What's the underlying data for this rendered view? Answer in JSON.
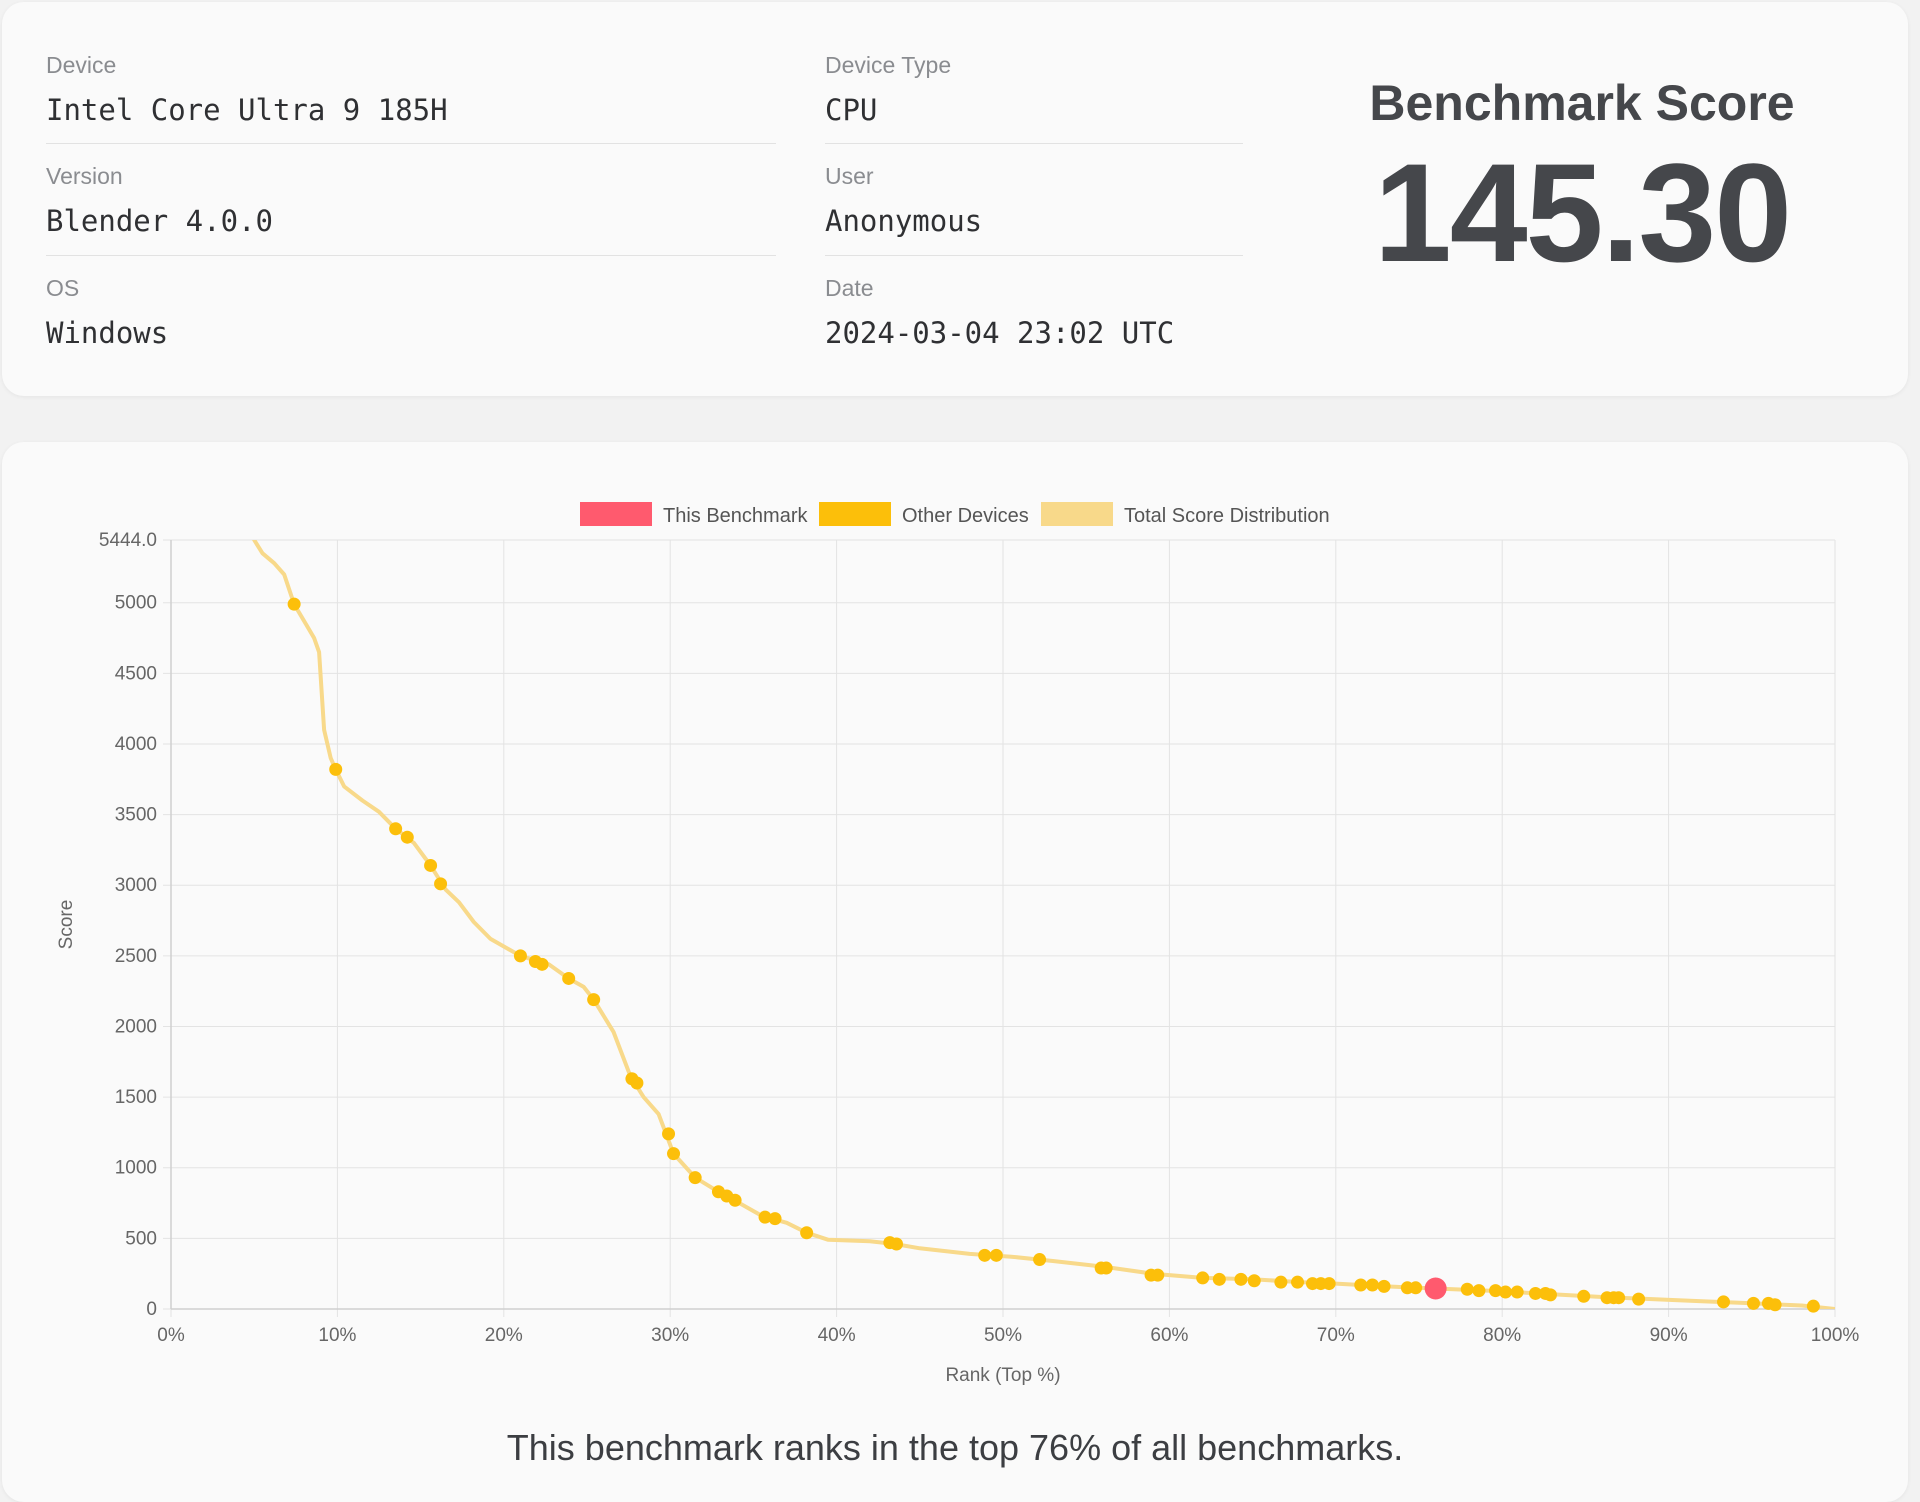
{
  "info": {
    "device_label": "Device",
    "device_value": "Intel Core Ultra 9 185H",
    "device_type_label": "Device Type",
    "device_type_value": "CPU",
    "version_label": "Version",
    "version_value": "Blender 4.0.0",
    "user_label": "User",
    "user_value": "Anonymous",
    "os_label": "OS",
    "os_value": "Windows",
    "date_label": "Date",
    "date_value": "2024-03-04 23:02 UTC"
  },
  "score": {
    "title": "Benchmark Score",
    "value": "145.30"
  },
  "summary": "This benchmark ranks in the top 76% of all benchmarks.",
  "chart_data": {
    "type": "scatter",
    "xlabel": "Rank (Top %)",
    "ylabel": "Score",
    "xlim": [
      0,
      100
    ],
    "ylim": [
      0,
      5444.0
    ],
    "x_ticks": [
      "0%",
      "10%",
      "20%",
      "30%",
      "40%",
      "50%",
      "60%",
      "70%",
      "80%",
      "90%",
      "100%"
    ],
    "y_ticks": [
      "0",
      "500",
      "1000",
      "1500",
      "2000",
      "2500",
      "3000",
      "3500",
      "4000",
      "4500",
      "5000",
      "5444.0"
    ],
    "grid": true,
    "legend_position": "top",
    "colors": {
      "this_benchmark": "#ff5a6e",
      "other_devices": "#fcbf0a",
      "distribution": "#f8d98a",
      "grid": "#e3e3e3"
    },
    "series": [
      {
        "name": "This Benchmark",
        "points": [
          [
            76.0,
            145.3
          ]
        ]
      },
      {
        "name": "Other Devices",
        "points": [
          [
            7.4,
            4990
          ],
          [
            9.9,
            3820
          ],
          [
            13.5,
            3400
          ],
          [
            14.2,
            3340
          ],
          [
            15.6,
            3140
          ],
          [
            16.2,
            3010
          ],
          [
            21.0,
            2500
          ],
          [
            21.9,
            2460
          ],
          [
            22.3,
            2440
          ],
          [
            23.9,
            2340
          ],
          [
            25.4,
            2190
          ],
          [
            27.7,
            1630
          ],
          [
            28.0,
            1600
          ],
          [
            29.9,
            1240
          ],
          [
            30.2,
            1100
          ],
          [
            31.5,
            930
          ],
          [
            32.9,
            830
          ],
          [
            33.4,
            800
          ],
          [
            33.9,
            770
          ],
          [
            35.7,
            650
          ],
          [
            36.3,
            640
          ],
          [
            38.2,
            540
          ],
          [
            43.2,
            470
          ],
          [
            43.6,
            460
          ],
          [
            48.9,
            380
          ],
          [
            49.6,
            380
          ],
          [
            52.2,
            350
          ],
          [
            55.9,
            290
          ],
          [
            56.2,
            290
          ],
          [
            58.9,
            240
          ],
          [
            59.3,
            240
          ],
          [
            62.0,
            220
          ],
          [
            63.0,
            210
          ],
          [
            64.3,
            210
          ],
          [
            65.1,
            200
          ],
          [
            66.7,
            190
          ],
          [
            67.7,
            190
          ],
          [
            68.6,
            180
          ],
          [
            69.1,
            180
          ],
          [
            69.6,
            180
          ],
          [
            71.5,
            170
          ],
          [
            72.2,
            170
          ],
          [
            72.9,
            160
          ],
          [
            74.3,
            150
          ],
          [
            74.8,
            150
          ],
          [
            77.9,
            140
          ],
          [
            78.6,
            130
          ],
          [
            79.6,
            130
          ],
          [
            80.2,
            120
          ],
          [
            80.9,
            120
          ],
          [
            82.0,
            110
          ],
          [
            82.6,
            110
          ],
          [
            82.9,
            100
          ],
          [
            84.9,
            90
          ],
          [
            86.3,
            80
          ],
          [
            86.7,
            80
          ],
          [
            87.0,
            80
          ],
          [
            88.2,
            70
          ],
          [
            93.3,
            50
          ],
          [
            95.1,
            40
          ],
          [
            96.0,
            40
          ],
          [
            96.4,
            30
          ],
          [
            98.7,
            20
          ]
        ]
      },
      {
        "name": "Total Score Distribution",
        "points": [
          [
            5.0,
            5444
          ],
          [
            5.5,
            5350
          ],
          [
            6.2,
            5280
          ],
          [
            6.8,
            5200
          ],
          [
            7.4,
            4990
          ],
          [
            8.1,
            4850
          ],
          [
            8.6,
            4750
          ],
          [
            8.9,
            4650
          ],
          [
            9.2,
            4100
          ],
          [
            9.6,
            3900
          ],
          [
            9.9,
            3820
          ],
          [
            10.4,
            3700
          ],
          [
            11.5,
            3600
          ],
          [
            12.5,
            3520
          ],
          [
            13.5,
            3400
          ],
          [
            14.6,
            3300
          ],
          [
            15.6,
            3140
          ],
          [
            16.5,
            2970
          ],
          [
            17.3,
            2880
          ],
          [
            18.2,
            2740
          ],
          [
            19.2,
            2620
          ],
          [
            21.0,
            2500
          ],
          [
            22.7,
            2440
          ],
          [
            23.9,
            2340
          ],
          [
            24.8,
            2280
          ],
          [
            25.4,
            2190
          ],
          [
            26.6,
            1960
          ],
          [
            27.6,
            1650
          ],
          [
            28.4,
            1500
          ],
          [
            29.3,
            1380
          ],
          [
            30.2,
            1100
          ],
          [
            31.5,
            930
          ],
          [
            32.9,
            830
          ],
          [
            34.3,
            740
          ],
          [
            35.5,
            660
          ],
          [
            37.0,
            610
          ],
          [
            38.2,
            540
          ],
          [
            39.5,
            490
          ],
          [
            42.0,
            480
          ],
          [
            43.5,
            460
          ],
          [
            45.0,
            430
          ],
          [
            48.0,
            390
          ],
          [
            50.5,
            370
          ],
          [
            53.0,
            340
          ],
          [
            56.0,
            300
          ],
          [
            59.0,
            250
          ],
          [
            62.0,
            220
          ],
          [
            65.0,
            210
          ],
          [
            68.0,
            190
          ],
          [
            70.0,
            180
          ],
          [
            73.0,
            160
          ],
          [
            76.0,
            145
          ],
          [
            80.0,
            125
          ],
          [
            83.0,
            105
          ],
          [
            86.0,
            85
          ],
          [
            89.0,
            70
          ],
          [
            92.0,
            55
          ],
          [
            95.0,
            40
          ],
          [
            98.0,
            25
          ],
          [
            100.0,
            0
          ]
        ]
      }
    ]
  }
}
